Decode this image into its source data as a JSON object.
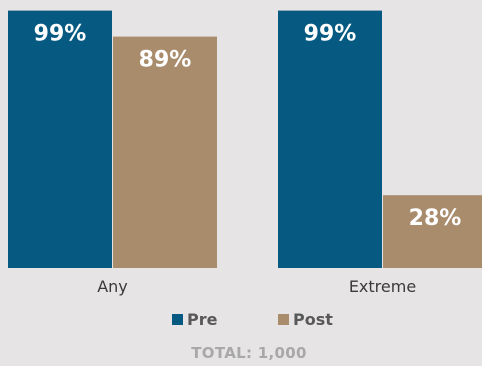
{
  "chart_data": {
    "type": "bar",
    "categories": [
      "Any",
      "Extreme"
    ],
    "series": [
      {
        "name": "Pre",
        "values": [
          99,
          99
        ],
        "labels": [
          "99%",
          "99%"
        ]
      },
      {
        "name": "Post",
        "values": [
          89,
          28
        ],
        "labels": [
          "89%",
          "28%"
        ]
      }
    ],
    "ylim": [
      0,
      100
    ],
    "grid": false,
    "legend_placement": "bottom",
    "colors": {
      "Pre": "#065a82",
      "Post": "#a88c6c"
    }
  },
  "legend": {
    "pre_label": "Pre",
    "post_label": "Post"
  },
  "footer": {
    "total": "TOTAL: 1,000"
  }
}
